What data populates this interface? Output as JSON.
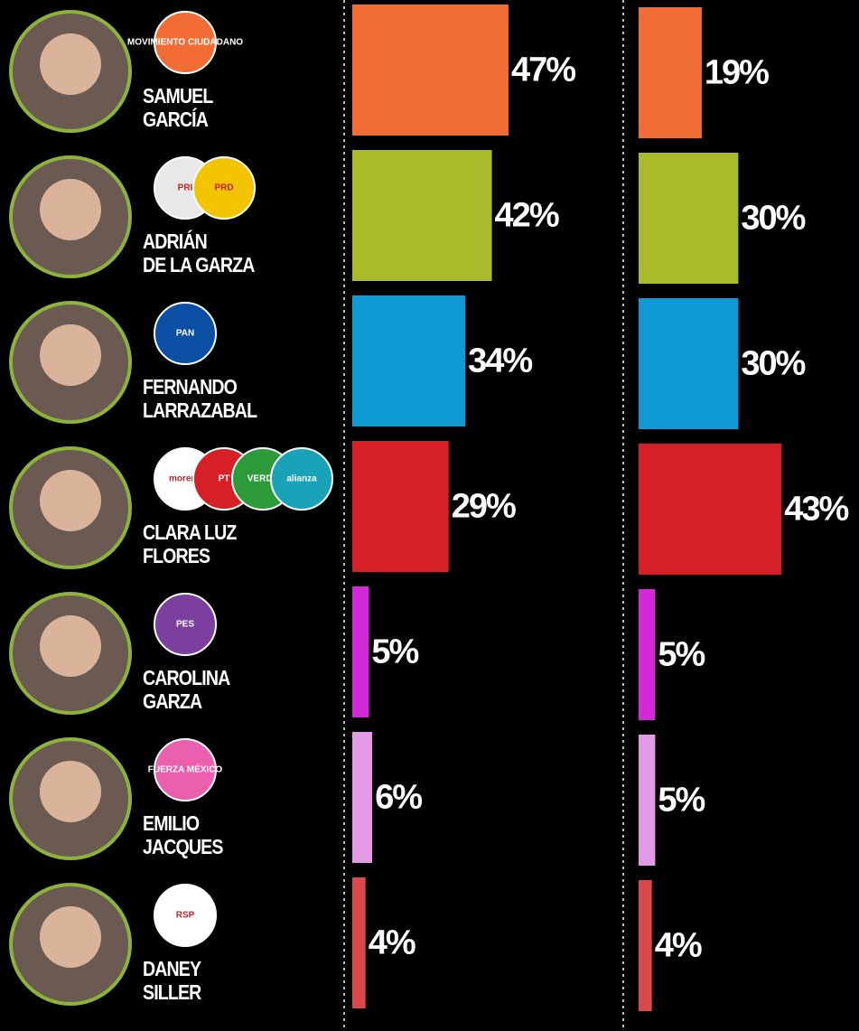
{
  "chart_data": {
    "type": "bar",
    "orientation": "horizontal",
    "categories": [
      "SAMUEL\nGARCÍA",
      "ADRIÁN\nDE LA GARZA",
      "FERNANDO\nLARRAZABAL",
      "CLARA LUZ\nFLORES",
      "CAROLINA\nGARZA",
      "EMILIO\nJACQUES",
      "DANEY\nSILLER"
    ],
    "logos": [
      [
        "MOVIMIENTO CIUDADANO"
      ],
      [
        "PRI",
        "PRD"
      ],
      [
        "PAN"
      ],
      [
        "morena",
        "PT",
        "VERDE",
        "alianza"
      ],
      [
        "PES"
      ],
      [
        "FUERZA MÉXICO"
      ],
      [
        "RSP"
      ]
    ],
    "logo_colors": [
      [
        "#f26c36"
      ],
      [
        "#e8e8e8",
        "#f5c400"
      ],
      [
        "#0a4fa3"
      ],
      [
        "#ffffff",
        "#d71f26",
        "#2e9b3a",
        "#1aa3b8"
      ],
      [
        "#7b3fa0"
      ],
      [
        "#ea5fae"
      ],
      [
        "#ffffff"
      ]
    ],
    "colors": [
      "#f26c36",
      "#a9bb2a",
      "#0f9ad6",
      "#d71f26",
      "#d22ad6",
      "#e39be8",
      "#d9494b"
    ],
    "xlim": [
      0,
      100
    ],
    "series": [
      {
        "values": [
          47,
          42,
          34,
          29,
          5,
          6,
          4
        ],
        "value_labels": [
          "47%",
          "42%",
          "34%",
          "29%",
          "5%",
          "6%",
          "4%"
        ]
      },
      {
        "values": [
          19,
          30,
          30,
          43,
          5,
          5,
          4
        ],
        "value_labels": [
          "19%",
          "30%",
          "30%",
          "43%",
          "5%",
          "5%",
          "4%"
        ]
      }
    ]
  }
}
